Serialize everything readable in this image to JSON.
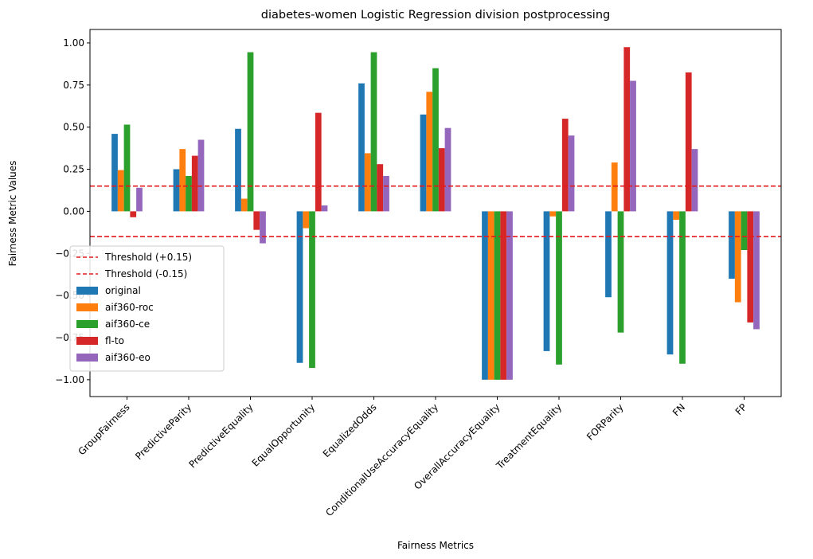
{
  "chart_data": {
    "type": "bar",
    "title": "diabetes-women Logistic Regression division postprocessing",
    "xlabel": "Fairness Metrics",
    "ylabel": "Fairness Metric Values",
    "ylim": [
      -1.1,
      1.08
    ],
    "yticks": [
      -1.0,
      -0.75,
      -0.5,
      -0.25,
      0.0,
      0.25,
      0.5,
      0.75,
      1.0
    ],
    "ytick_labels": [
      "−1.00",
      "−0.75",
      "−0.50",
      "−0.25",
      "0.00",
      "0.25",
      "0.50",
      "0.75",
      "1.00"
    ],
    "grid": false,
    "legend_position": "lower-left",
    "categories": [
      "GroupFairness",
      "PredictiveParity",
      "PredictiveEquality",
      "EqualOpportunity",
      "EqualizedOdds",
      "ConditionalUseAccuracyEquality",
      "OverallAccuracyEquality",
      "TreatmentEquality",
      "FORParity",
      "FN",
      "FP"
    ],
    "series": [
      {
        "name": "original",
        "color": "#1f77b4",
        "values": [
          0.46,
          0.25,
          0.49,
          -0.9,
          0.76,
          0.575,
          -1.0,
          -0.83,
          -0.51,
          -0.85,
          -0.4
        ]
      },
      {
        "name": "aif360-roc",
        "color": "#ff7f0e",
        "values": [
          0.245,
          0.37,
          0.075,
          -0.1,
          0.345,
          0.71,
          -1.0,
          -0.03,
          0.29,
          -0.05,
          -0.54
        ]
      },
      {
        "name": "aif360-ce",
        "color": "#2ca02c",
        "values": [
          0.515,
          0.21,
          0.945,
          -0.93,
          0.945,
          0.85,
          -1.0,
          -0.91,
          -0.72,
          -0.905,
          -0.23
        ]
      },
      {
        "name": "fl-to",
        "color": "#d62728",
        "values": [
          -0.035,
          0.33,
          -0.11,
          0.585,
          0.28,
          0.375,
          -1.0,
          0.55,
          0.975,
          0.825,
          -0.66
        ]
      },
      {
        "name": "aif360-eo",
        "color": "#9467bd",
        "values": [
          0.14,
          0.425,
          -0.19,
          0.035,
          0.21,
          0.495,
          -1.0,
          0.45,
          0.775,
          0.37,
          -0.7
        ]
      }
    ],
    "thresholds": [
      {
        "name": "Threshold (+0.15)",
        "value": 0.15,
        "color": "#e41a1c"
      },
      {
        "name": "Threshold (-0.15)",
        "value": -0.15,
        "color": "#e41a1c"
      }
    ]
  }
}
